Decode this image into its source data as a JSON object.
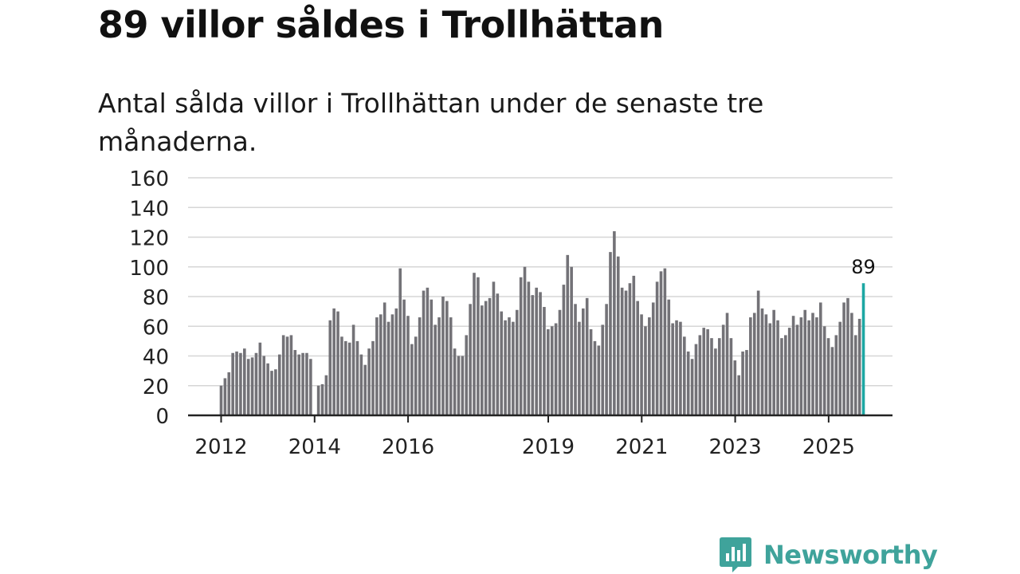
{
  "header": {
    "title": "89 villor såldes i Trollhättan",
    "subtitle": "Antal sålda villor i Trollhättan under de senaste tre månaderna."
  },
  "brand": {
    "name": "Newsworthy",
    "logo_icon": "bar-chart-speech-bubble-icon",
    "color": "#3fa39b"
  },
  "colors": {
    "bar": "#737277",
    "highlight": "#1ca7a3",
    "grid": "#d6d6d6",
    "axis": "#222222"
  },
  "chart_data": {
    "type": "bar",
    "title": "89 villor såldes i Trollhättan",
    "subtitle": "Antal sålda villor i Trollhättan under de senaste tre månaderna.",
    "ylabel": "",
    "xlabel": "",
    "ylim": [
      0,
      160
    ],
    "yticks": [
      0,
      20,
      40,
      60,
      80,
      100,
      120,
      140,
      160
    ],
    "xlim": [
      2012.0,
      2026.0
    ],
    "xticks": [
      {
        "label": "2012",
        "value": 2012.0
      },
      {
        "label": "2014",
        "value": 2014.0
      },
      {
        "label": "2016",
        "value": 2016.0
      },
      {
        "label": "2019",
        "value": 2019.0
      },
      {
        "label": "2021",
        "value": 2021.0
      },
      {
        "label": "2023",
        "value": 2023.0
      },
      {
        "label": "2025",
        "value": 2025.0
      }
    ],
    "grid": true,
    "x_start": 2012.0,
    "step": 0.0833,
    "values": [
      20,
      25,
      29,
      42,
      43,
      42,
      45,
      38,
      39,
      42,
      49,
      40,
      35,
      30,
      31,
      41,
      54,
      53,
      54,
      44,
      41,
      42,
      42,
      38,
      0,
      20,
      21,
      27,
      64,
      72,
      70,
      53,
      50,
      49,
      61,
      50,
      41,
      34,
      45,
      50,
      66,
      68,
      76,
      63,
      68,
      72,
      99,
      78,
      67,
      48,
      53,
      66,
      84,
      86,
      78,
      61,
      66,
      80,
      77,
      66,
      45,
      40,
      40,
      54,
      75,
      96,
      93,
      74,
      77,
      79,
      90,
      82,
      70,
      64,
      66,
      63,
      71,
      93,
      100,
      90,
      81,
      86,
      83,
      73,
      58,
      60,
      62,
      71,
      88,
      108,
      100,
      75,
      63,
      72,
      79,
      58,
      50,
      47,
      61,
      75,
      110,
      124,
      107,
      86,
      84,
      89,
      94,
      77,
      68,
      60,
      66,
      76,
      90,
      97,
      99,
      78,
      62,
      64,
      63,
      53,
      43,
      38,
      48,
      54,
      59,
      58,
      52,
      45,
      52,
      61,
      69,
      52,
      37,
      27,
      43,
      44,
      66,
      69,
      84,
      72,
      68,
      62,
      71,
      64,
      52,
      54,
      59,
      67,
      61,
      66,
      71,
      64,
      69,
      66,
      76,
      60,
      52,
      46,
      54,
      63,
      76,
      79,
      69,
      54,
      65,
      89
    ],
    "highlight_index": 165,
    "highlight_label": "89"
  }
}
